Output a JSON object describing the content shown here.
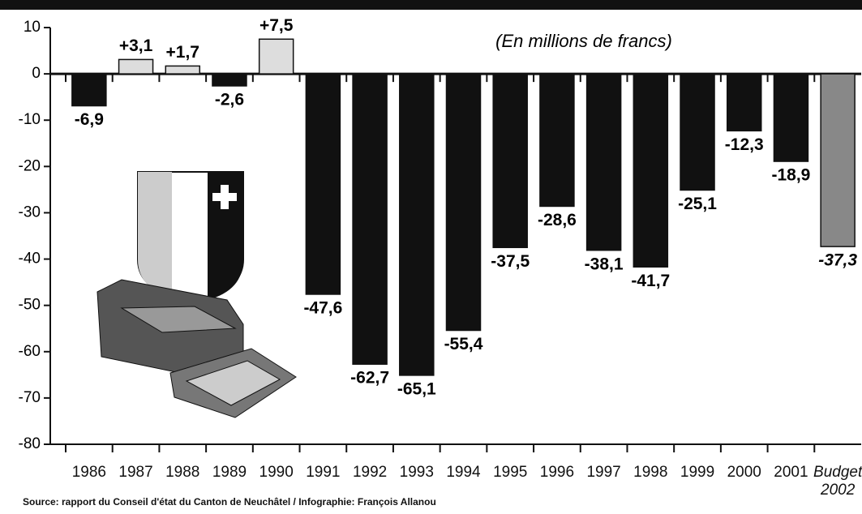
{
  "chart_data": {
    "type": "bar",
    "subtitle": "(En millions de francs)",
    "source": "Source: rapport du Conseil d'état du Canton de Neuchâtel / Infographie: François Allanou",
    "categories": [
      "1986",
      "1987",
      "1988",
      "1989",
      "1990",
      "1991",
      "1992",
      "1993",
      "1994",
      "1995",
      "1996",
      "1997",
      "1998",
      "1999",
      "2000",
      "2001",
      "Budget\n2002"
    ],
    "values": [
      -6.9,
      3.1,
      1.7,
      -2.6,
      7.5,
      -47.6,
      -62.7,
      -65.1,
      -55.4,
      -37.5,
      -28.6,
      -38.1,
      -41.7,
      -25.1,
      -12.3,
      -18.9,
      -37.3
    ],
    "value_labels": [
      "-6,9",
      "+3,1",
      "+1,7",
      "-2,6",
      "+7,5",
      "-47,6",
      "-62,7",
      "-65,1",
      "-55,4",
      "-37,5",
      "-28,6",
      "-38,1",
      "-41,7",
      "-25,1",
      "-12,3",
      "-18,9",
      "-37,3"
    ],
    "colors": [
      "#111111",
      "#dddddd",
      "#dddddd",
      "#111111",
      "#dddddd",
      "#111111",
      "#111111",
      "#111111",
      "#111111",
      "#111111",
      "#111111",
      "#111111",
      "#111111",
      "#111111",
      "#111111",
      "#111111",
      "#888888"
    ],
    "ylim": [
      -80,
      10
    ],
    "yticks": [
      -80,
      -70,
      -60,
      -50,
      -40,
      -30,
      -20,
      -10,
      0,
      10
    ]
  }
}
